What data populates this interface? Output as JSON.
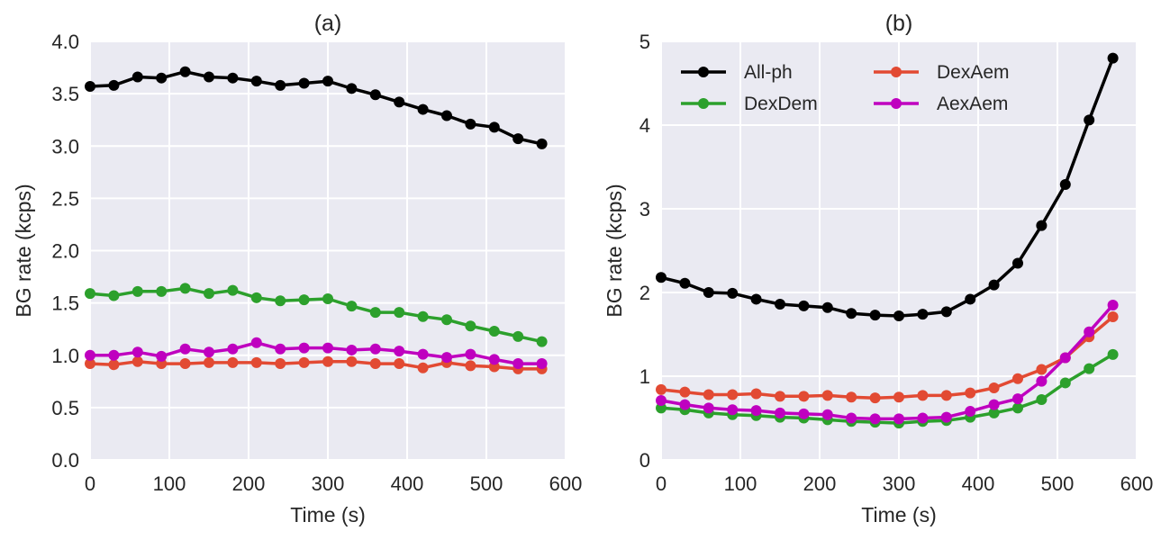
{
  "chart_data": [
    {
      "type": "line",
      "title": "(a)",
      "xlabel": "Time (s)",
      "ylabel": "BG rate (kcps)",
      "xlim": [
        0,
        600
      ],
      "ylim": [
        0,
        4.0
      ],
      "xticks": [
        0,
        100,
        200,
        300,
        400,
        500,
        600
      ],
      "xtick_labels": [
        "0",
        "100",
        "200",
        "300",
        "400",
        "500",
        "600"
      ],
      "yticks": [
        0,
        0.5,
        1.0,
        1.5,
        2.0,
        2.5,
        3.0,
        3.5,
        4.0
      ],
      "ytick_labels": [
        "0.0",
        "0.5",
        "1.0",
        "1.5",
        "2.0",
        "2.5",
        "3.0",
        "3.5",
        "4.0"
      ],
      "grid": true,
      "background": "#eaeaf2",
      "x": [
        0,
        30,
        60,
        90,
        120,
        150,
        180,
        210,
        240,
        270,
        300,
        330,
        360,
        390,
        420,
        450,
        480,
        510,
        540,
        570
      ],
      "series": [
        {
          "color": "#000000",
          "values": [
            3.57,
            3.58,
            3.66,
            3.65,
            3.71,
            3.66,
            3.65,
            3.62,
            3.58,
            3.6,
            3.62,
            3.55,
            3.49,
            3.42,
            3.35,
            3.29,
            3.21,
            3.18,
            3.07,
            3.02
          ]
        },
        {
          "color": "#2ca02c",
          "values": [
            1.59,
            1.57,
            1.61,
            1.61,
            1.64,
            1.59,
            1.62,
            1.55,
            1.52,
            1.53,
            1.54,
            1.47,
            1.41,
            1.41,
            1.37,
            1.34,
            1.28,
            1.23,
            1.18,
            1.13
          ]
        },
        {
          "color": "#e24a33",
          "values": [
            0.92,
            0.91,
            0.94,
            0.92,
            0.92,
            0.93,
            0.93,
            0.93,
            0.92,
            0.93,
            0.94,
            0.94,
            0.92,
            0.92,
            0.88,
            0.93,
            0.9,
            0.89,
            0.87,
            0.87
          ]
        },
        {
          "color": "#bf00bf",
          "values": [
            1.0,
            1.0,
            1.03,
            0.99,
            1.06,
            1.03,
            1.06,
            1.12,
            1.06,
            1.07,
            1.07,
            1.05,
            1.06,
            1.04,
            1.01,
            0.98,
            1.01,
            0.96,
            0.92,
            0.92
          ]
        }
      ]
    },
    {
      "type": "line",
      "title": "(b)",
      "xlabel": "Time (s)",
      "ylabel": "BG rate (kcps)",
      "xlim": [
        0,
        600
      ],
      "ylim": [
        0,
        5
      ],
      "xticks": [
        0,
        100,
        200,
        300,
        400,
        500,
        600
      ],
      "xtick_labels": [
        "0",
        "100",
        "200",
        "300",
        "400",
        "500",
        "600"
      ],
      "yticks": [
        0,
        1,
        2,
        3,
        4,
        5
      ],
      "ytick_labels": [
        "0",
        "1",
        "2",
        "3",
        "4",
        "5"
      ],
      "grid": true,
      "background": "#eaeaf2",
      "legend_position": "top-left",
      "x": [
        0,
        30,
        60,
        90,
        120,
        150,
        180,
        210,
        240,
        270,
        300,
        330,
        360,
        390,
        420,
        450,
        480,
        510,
        540,
        570
      ],
      "series": [
        {
          "name": "All-ph",
          "color": "#000000",
          "values": [
            2.18,
            2.11,
            2.0,
            1.99,
            1.92,
            1.86,
            1.84,
            1.82,
            1.75,
            1.73,
            1.72,
            1.74,
            1.77,
            1.92,
            2.09,
            2.35,
            2.8,
            3.29,
            4.06,
            4.8
          ]
        },
        {
          "name": "DexDem",
          "color": "#2ca02c",
          "values": [
            0.62,
            0.6,
            0.56,
            0.54,
            0.53,
            0.51,
            0.5,
            0.48,
            0.46,
            0.45,
            0.44,
            0.46,
            0.47,
            0.51,
            0.56,
            0.62,
            0.72,
            0.92,
            1.09,
            1.26
          ]
        },
        {
          "name": "DexAem",
          "color": "#e24a33",
          "values": [
            0.84,
            0.81,
            0.78,
            0.78,
            0.79,
            0.76,
            0.76,
            0.77,
            0.75,
            0.74,
            0.75,
            0.77,
            0.77,
            0.8,
            0.86,
            0.97,
            1.08,
            1.22,
            1.47,
            1.71
          ]
        },
        {
          "name": "AexAem",
          "color": "#bf00bf",
          "values": [
            0.71,
            0.66,
            0.62,
            0.6,
            0.59,
            0.56,
            0.55,
            0.54,
            0.5,
            0.49,
            0.49,
            0.5,
            0.51,
            0.58,
            0.66,
            0.73,
            0.94,
            1.22,
            1.53,
            1.85
          ]
        }
      ]
    }
  ]
}
